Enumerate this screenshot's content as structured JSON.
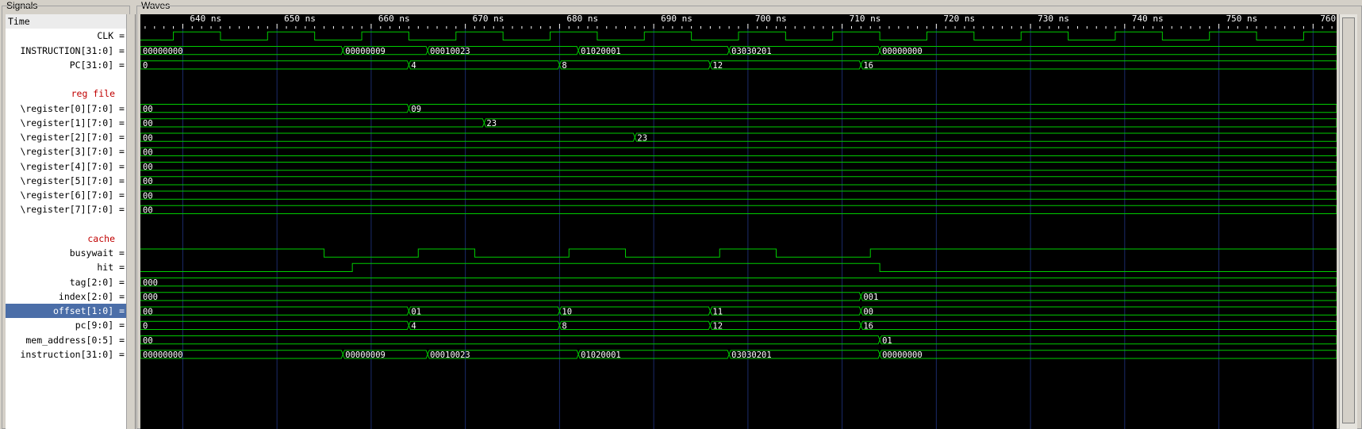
{
  "panels": {
    "signals_title": "Signals",
    "waves_title": "Waves"
  },
  "time": {
    "header": "Time",
    "start_ns": 635.5,
    "end_ns": 762.5,
    "ticks": [
      "640 ns",
      "650 ns",
      "660 ns",
      "670 ns",
      "680 ns",
      "690 ns",
      "700 ns",
      "710 ns",
      "720 ns",
      "730 ns",
      "740 ns",
      "750 ns",
      "760 ns"
    ],
    "tick_values": [
      640,
      650,
      660,
      670,
      680,
      690,
      700,
      710,
      720,
      730,
      740,
      750,
      760
    ]
  },
  "colors": {
    "wave": "#00cc00",
    "grid": "#1a2a6a",
    "group_label": "#c00000",
    "selected_row": "#4b6ea8"
  },
  "signals": [
    {
      "label": "Time",
      "kind": "header"
    },
    {
      "label": "CLK =",
      "kind": "clock",
      "period": 10,
      "first_rise": 639
    },
    {
      "label": "INSTRUCTION[31:0] =",
      "kind": "bus",
      "segments": [
        {
          "t": 635.5,
          "v": "00000000"
        },
        {
          "t": 657,
          "v": "00000009"
        },
        {
          "t": 666,
          "v": "00010023"
        },
        {
          "t": 682,
          "v": "01020001"
        },
        {
          "t": 698,
          "v": "03030201"
        },
        {
          "t": 714,
          "v": "00000000"
        }
      ]
    },
    {
      "label": "PC[31:0] =",
      "kind": "bus",
      "segments": [
        {
          "t": 635.5,
          "v": "0"
        },
        {
          "t": 664,
          "v": "4"
        },
        {
          "t": 680,
          "v": "8"
        },
        {
          "t": 696,
          "v": "12"
        },
        {
          "t": 712,
          "v": "16"
        }
      ]
    },
    {
      "label": "",
      "kind": "blank"
    },
    {
      "label": "reg file",
      "kind": "group"
    },
    {
      "label": "\\register[0][7:0] =",
      "kind": "bus",
      "segments": [
        {
          "t": 635.5,
          "v": "00"
        },
        {
          "t": 664,
          "v": "09"
        }
      ]
    },
    {
      "label": "\\register[1][7:0] =",
      "kind": "bus",
      "segments": [
        {
          "t": 635.5,
          "v": "00"
        },
        {
          "t": 672,
          "v": "23"
        }
      ]
    },
    {
      "label": "\\register[2][7:0] =",
      "kind": "bus",
      "segments": [
        {
          "t": 635.5,
          "v": "00"
        },
        {
          "t": 688,
          "v": "23"
        }
      ]
    },
    {
      "label": "\\register[3][7:0] =",
      "kind": "bus",
      "segments": [
        {
          "t": 635.5,
          "v": "00"
        }
      ]
    },
    {
      "label": "\\register[4][7:0] =",
      "kind": "bus",
      "segments": [
        {
          "t": 635.5,
          "v": "00"
        }
      ]
    },
    {
      "label": "\\register[5][7:0] =",
      "kind": "bus",
      "segments": [
        {
          "t": 635.5,
          "v": "00"
        }
      ]
    },
    {
      "label": "\\register[6][7:0] =",
      "kind": "bus",
      "segments": [
        {
          "t": 635.5,
          "v": "00"
        }
      ]
    },
    {
      "label": "\\register[7][7:0] =",
      "kind": "bus",
      "segments": [
        {
          "t": 635.5,
          "v": "00"
        }
      ]
    },
    {
      "label": "",
      "kind": "blank"
    },
    {
      "label": "cache",
      "kind": "group"
    },
    {
      "label": "busywait =",
      "kind": "bit",
      "initial": 1,
      "transitions": [
        655,
        665,
        671,
        681,
        687,
        697,
        703,
        713
      ]
    },
    {
      "label": "hit =",
      "kind": "bit",
      "initial": 0,
      "transitions": [
        658,
        714
      ]
    },
    {
      "label": "tag[2:0] =",
      "kind": "bus",
      "segments": [
        {
          "t": 635.5,
          "v": "000"
        }
      ]
    },
    {
      "label": "index[2:0] =",
      "kind": "bus",
      "segments": [
        {
          "t": 635.5,
          "v": "000"
        },
        {
          "t": 712,
          "v": "001"
        }
      ]
    },
    {
      "label": "offset[1:0] =",
      "kind": "bus",
      "selected": true,
      "segments": [
        {
          "t": 635.5,
          "v": "00"
        },
        {
          "t": 664,
          "v": "01"
        },
        {
          "t": 680,
          "v": "10"
        },
        {
          "t": 696,
          "v": "11"
        },
        {
          "t": 712,
          "v": "00"
        }
      ]
    },
    {
      "label": "pc[9:0] =",
      "kind": "bus",
      "segments": [
        {
          "t": 635.5,
          "v": "0"
        },
        {
          "t": 664,
          "v": "4"
        },
        {
          "t": 680,
          "v": "8"
        },
        {
          "t": 696,
          "v": "12"
        },
        {
          "t": 712,
          "v": "16"
        }
      ]
    },
    {
      "label": "mem_address[0:5] =",
      "kind": "bus",
      "segments": [
        {
          "t": 635.5,
          "v": "00"
        },
        {
          "t": 714,
          "v": "01"
        }
      ]
    },
    {
      "label": "instruction[31:0] =",
      "kind": "bus",
      "segments": [
        {
          "t": 635.5,
          "v": "00000000"
        },
        {
          "t": 657,
          "v": "00000009"
        },
        {
          "t": 666,
          "v": "00010023"
        },
        {
          "t": 682,
          "v": "01020001"
        },
        {
          "t": 698,
          "v": "03030201"
        },
        {
          "t": 714,
          "v": "00000000"
        }
      ]
    }
  ]
}
